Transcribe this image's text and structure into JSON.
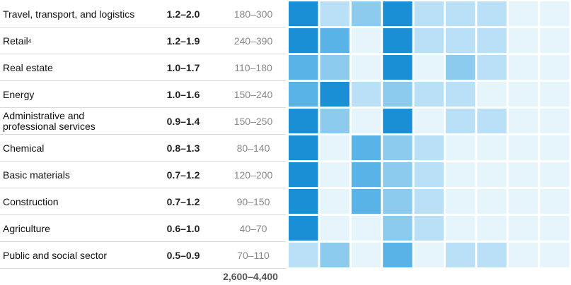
{
  "palette": {
    "4": "#1b8fd6",
    "3": "#5ab3e6",
    "2": "#8ccaee",
    "1": "#b9e0f6",
    "0": "#e6f4fb"
  },
  "chart_data": {
    "type": "heatmap",
    "rows": [
      {
        "label": "Travel, transport, and logistics",
        "sup": "",
        "range": "1.2–2.0",
        "value": "180–300",
        "levels": [
          4,
          1,
          2,
          4,
          1,
          1,
          1,
          0,
          0
        ]
      },
      {
        "label": "Retail",
        "sup": "4",
        "range": "1.2–1.9",
        "value": "240–390",
        "levels": [
          4,
          3,
          0,
          4,
          1,
          1,
          1,
          0,
          0
        ]
      },
      {
        "label": "Real estate",
        "sup": "",
        "range": "1.0–1.7",
        "value": "110–180",
        "levels": [
          3,
          2,
          0,
          4,
          0,
          2,
          1,
          0,
          0
        ]
      },
      {
        "label": "Energy",
        "sup": "",
        "range": "1.0–1.6",
        "value": "150–240",
        "levels": [
          3,
          4,
          1,
          2,
          1,
          1,
          0,
          0,
          0
        ]
      },
      {
        "label": "Administrative and\nprofessional services",
        "sup": "",
        "range": "0.9–1.4",
        "value": "150–250",
        "levels": [
          4,
          2,
          0,
          4,
          0,
          1,
          1,
          0,
          0
        ]
      },
      {
        "label": "Chemical",
        "sup": "",
        "range": "0.8–1.3",
        "value": "80–140",
        "levels": [
          4,
          0,
          3,
          2,
          1,
          0,
          0,
          0,
          0
        ]
      },
      {
        "label": "Basic materials",
        "sup": "",
        "range": "0.7–1.2",
        "value": "120–200",
        "levels": [
          4,
          0,
          3,
          2,
          1,
          0,
          0,
          0,
          0
        ]
      },
      {
        "label": "Construction",
        "sup": "",
        "range": "0.7–1.2",
        "value": "90–150",
        "levels": [
          4,
          0,
          3,
          2,
          1,
          0,
          0,
          0,
          0
        ]
      },
      {
        "label": "Agriculture",
        "sup": "",
        "range": "0.6–1.0",
        "value": "40–70",
        "levels": [
          4,
          0,
          0,
          2,
          1,
          0,
          0,
          0,
          0
        ]
      },
      {
        "label": "Public and social sector",
        "sup": "",
        "range": "0.5–0.9",
        "value": "70–110",
        "levels": [
          1,
          2,
          0,
          3,
          0,
          1,
          1,
          0,
          0
        ]
      }
    ],
    "total": "2,600–4,400"
  }
}
